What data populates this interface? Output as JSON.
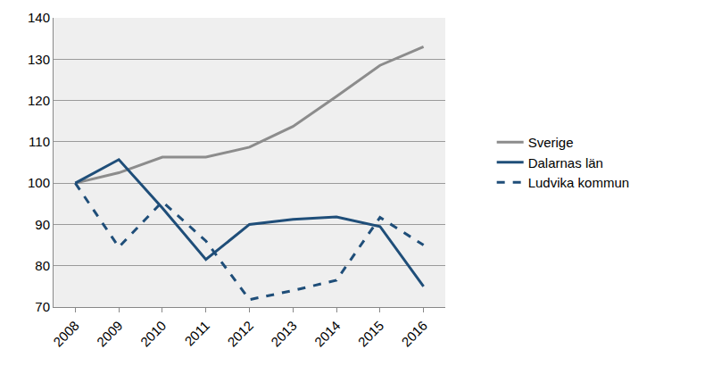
{
  "chart_data": {
    "type": "line",
    "categories": [
      "2008",
      "2009",
      "2010",
      "2011",
      "2012",
      "2013",
      "2014",
      "2015",
      "2016"
    ],
    "series": [
      {
        "name": "Sverige",
        "color": "#8c8c8c",
        "line_style": "solid",
        "values": [
          100,
          102.5,
          106.3,
          106.3,
          108.7,
          113.7,
          121,
          128.5,
          133
        ]
      },
      {
        "name": "Dalarnas län",
        "color": "#1f4e79",
        "line_style": "solid",
        "values": [
          100,
          105.7,
          94,
          81.5,
          90,
          91.2,
          91.8,
          89.5,
          75
        ]
      },
      {
        "name": "Ludvika kommun",
        "color": "#1f4e79",
        "line_style": "dash",
        "values": [
          100,
          84.5,
          95.5,
          86,
          71.8,
          74,
          76.5,
          91.7,
          85
        ]
      }
    ],
    "ylim": [
      70,
      140
    ],
    "yticks": [
      70,
      80,
      90,
      100,
      110,
      120,
      130,
      140
    ],
    "grid": true,
    "legend": "right"
  }
}
